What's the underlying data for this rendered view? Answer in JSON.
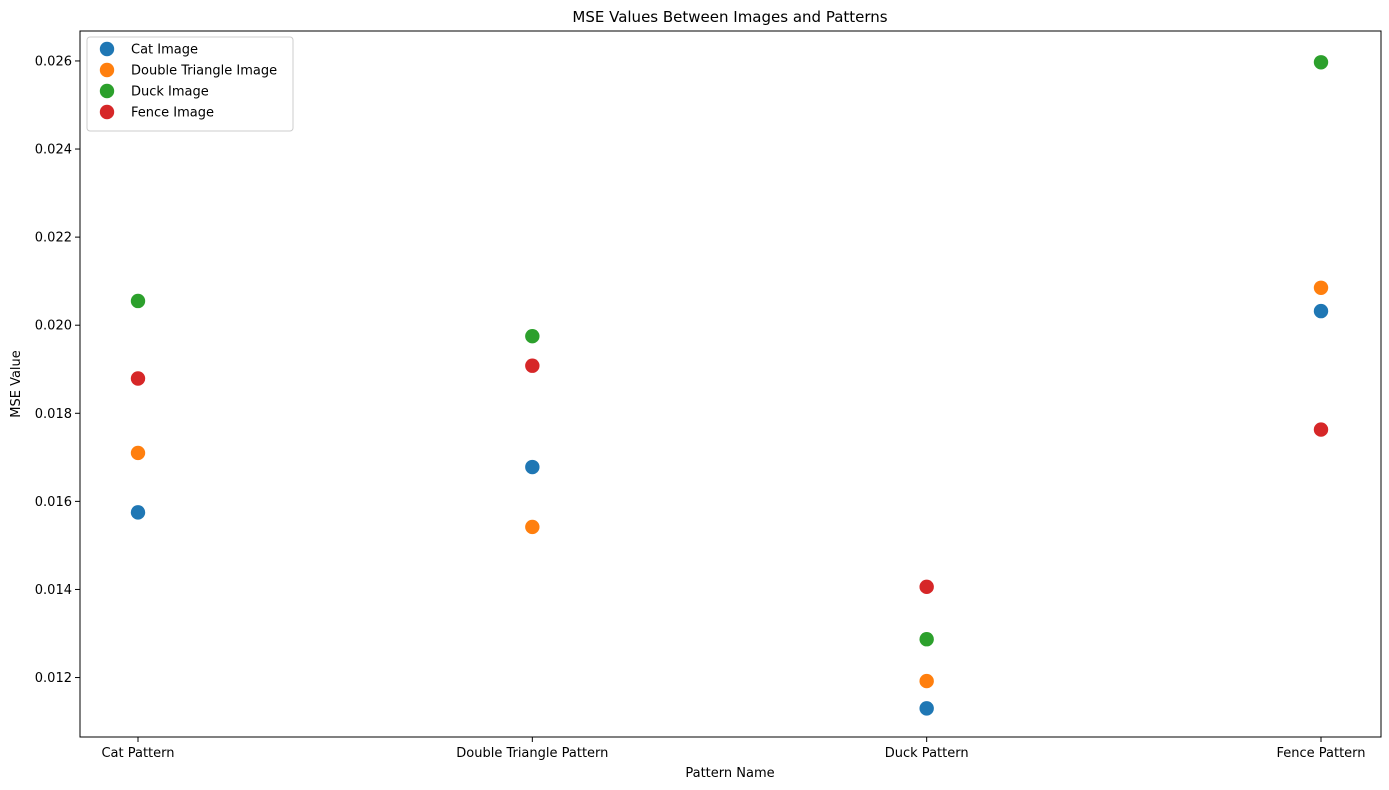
{
  "chart_data": {
    "type": "scatter",
    "title": "MSE Values Between Images and Patterns",
    "xlabel": "Pattern Name",
    "ylabel": "MSE Value",
    "categories": [
      "Cat Pattern",
      "Double Triangle Pattern",
      "Duck Pattern",
      "Fence Pattern"
    ],
    "ylim": [
      0.01065,
      0.02668
    ],
    "yticks": [
      "0.012",
      "0.014",
      "0.016",
      "0.018",
      "0.020",
      "0.022",
      "0.024",
      "0.026"
    ],
    "grid": false,
    "legend_position": "upper-left",
    "series": [
      {
        "name": "Cat Image",
        "color": "#1f77b4",
        "values": [
          0.01575,
          0.01678,
          0.0113,
          0.02032
        ]
      },
      {
        "name": "Double Triangle Image",
        "color": "#ff7f0e",
        "values": [
          0.0171,
          0.01542,
          0.01192,
          0.02085
        ]
      },
      {
        "name": "Duck Image",
        "color": "#2ca02c",
        "values": [
          0.02055,
          0.01975,
          0.01287,
          0.02597
        ]
      },
      {
        "name": "Fence Image",
        "color": "#d62728",
        "values": [
          0.01879,
          0.01908,
          0.01406,
          0.01763
        ]
      }
    ]
  }
}
